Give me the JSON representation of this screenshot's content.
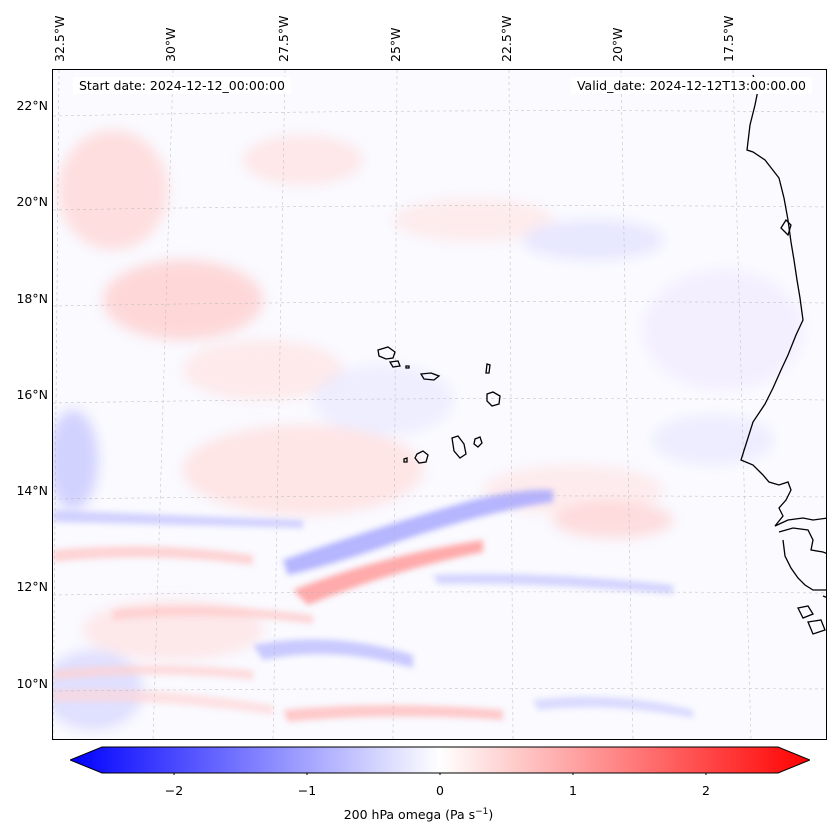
{
  "map": {
    "lon_labels": [
      "32.5°W",
      "30°W",
      "27.5°W",
      "25°W",
      "22.5°W",
      "20°W",
      "17.5°W"
    ],
    "lat_labels": [
      "22°N",
      "20°N",
      "18°N",
      "16°N",
      "14°N",
      "12°N",
      "10°N"
    ],
    "start_date": "Start date: 2024-12-12_00:00:00",
    "valid_date": "Valid_date: 2024-12-12T13:00:00.00"
  },
  "colorbar": {
    "ticks": [
      "−2",
      "−1",
      "0",
      "1",
      "2"
    ],
    "label_main": "200 hPa omega (Pa s",
    "label_sup": "−1",
    "label_end": ")",
    "range": [
      -2.75,
      2.75
    ],
    "low_color": "#0000ff",
    "mid_color": "#ffffff",
    "high_color": "#ff0000"
  }
}
